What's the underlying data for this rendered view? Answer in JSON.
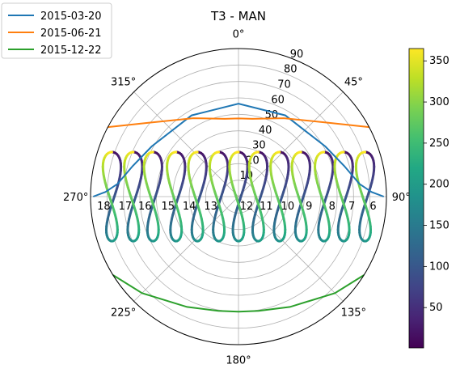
{
  "chart_data": {
    "type": "polar-line",
    "title": "T3 - MAN",
    "theta_zero": "N",
    "theta_direction": "clockwise",
    "r_lim": [
      0,
      90
    ],
    "r_ticks": [
      "10",
      "20",
      "30",
      "40",
      "50",
      "60",
      "70",
      "80",
      "90"
    ],
    "theta_ticks": [
      "0°",
      "45°",
      "90°",
      "135°",
      "180°",
      "225°",
      "270°",
      "315°"
    ],
    "grid": true,
    "legend_placement": "top-left",
    "series": [
      {
        "name": "2015-03-20",
        "color": "#1f77b4",
        "points": [
          [
            270,
            88.4
          ],
          [
            272,
            81
          ],
          [
            276,
            74
          ],
          [
            286,
            67
          ],
          [
            300,
            61
          ],
          [
            330,
            57
          ],
          [
            0,
            56.5
          ],
          [
            30,
            57
          ],
          [
            60,
            61
          ],
          [
            74,
            67
          ],
          [
            84,
            74
          ],
          [
            88,
            81
          ],
          [
            90,
            88.4
          ]
        ]
      },
      {
        "name": "2015-06-21",
        "color": "#ff7f0e",
        "points": [
          [
            298,
            90
          ],
          [
            310,
            70
          ],
          [
            330,
            55
          ],
          [
            350,
            48
          ],
          [
            0,
            47.5
          ],
          [
            10,
            48
          ],
          [
            30,
            55
          ],
          [
            50,
            70
          ],
          [
            62,
            90
          ]
        ]
      },
      {
        "name": "2015-12-22",
        "color": "#2ca02c",
        "points": [
          [
            238,
            90
          ],
          [
            225,
            83
          ],
          [
            205,
            74
          ],
          [
            190,
            70.5
          ],
          [
            180,
            70
          ],
          [
            170,
            70.5
          ],
          [
            155,
            74
          ],
          [
            135,
            83
          ],
          [
            122,
            90
          ]
        ]
      }
    ],
    "analemma_hour_labels": [
      "6",
      "7",
      "8",
      "9",
      "10",
      "11",
      "12",
      "13",
      "14",
      "15",
      "16",
      "17",
      "18"
    ],
    "analemmas": [
      {
        "label": "18",
        "base_x": -77
      },
      {
        "label": "17",
        "base_x": -64
      },
      {
        "label": "16",
        "base_x": -52
      },
      {
        "label": "15",
        "base_x": -38
      },
      {
        "label": "14",
        "base_x": -25
      },
      {
        "label": "13",
        "base_x": -12
      },
      {
        "label": "12",
        "base_x": 0
      },
      {
        "label": "11",
        "base_x": 12
      },
      {
        "label": "10",
        "base_x": 25
      },
      {
        "label": "9",
        "base_x": 38
      },
      {
        "label": "8",
        "base_x": 52
      },
      {
        "label": "7",
        "base_x": 64
      },
      {
        "label": "6",
        "base_x": 77
      }
    ],
    "colorbar": {
      "colormap": "viridis",
      "range": [
        1,
        365
      ],
      "ticks": [
        50,
        100,
        150,
        200,
        250,
        300,
        350
      ],
      "tick_labels": [
        "50",
        "100",
        "150",
        "200",
        "250",
        "300",
        "350"
      ]
    }
  }
}
